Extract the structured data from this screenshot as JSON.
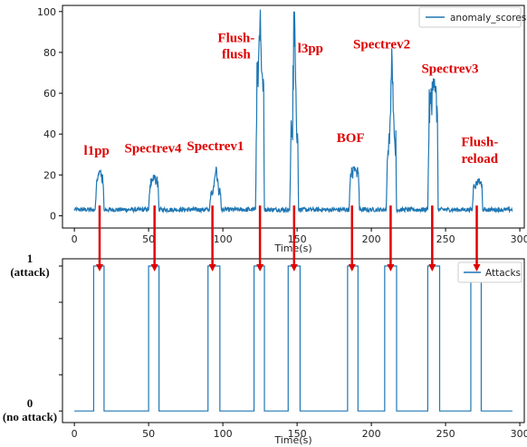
{
  "chart_data": [
    {
      "type": "line",
      "xlabel": "Time(s)",
      "ylabel": "",
      "xlim": [
        -8,
        303
      ],
      "ylim": [
        -6,
        103
      ],
      "xticks": [
        0,
        50,
        100,
        150,
        200,
        250,
        300
      ],
      "yticks": [
        0,
        20,
        40,
        60,
        80,
        100
      ],
      "grid": false,
      "legend": "top-right",
      "series": [
        {
          "name": "anomaly_scores",
          "color": "#1f77b4",
          "baseline": 3,
          "segments": [
            {
              "start": 14,
              "end": 20,
              "level": 17,
              "peak": 22
            },
            {
              "start": 50,
              "end": 57,
              "level": 16,
              "peak": 20
            },
            {
              "start": 91,
              "end": 99,
              "level": 12,
              "peak": 24
            },
            {
              "start": 122,
              "end": 128,
              "level": 65,
              "peak": 101
            },
            {
              "start": 145,
              "end": 151,
              "level": 40,
              "peak": 100
            },
            {
              "start": 185,
              "end": 192,
              "level": 21,
              "peak": 24
            },
            {
              "start": 210,
              "end": 217,
              "level": 35,
              "peak": 82
            },
            {
              "start": 238,
              "end": 245,
              "level": 55,
              "peak": 67
            },
            {
              "start": 268,
              "end": 275,
              "level": 16,
              "peak": 18
            }
          ]
        }
      ],
      "annotations": [
        {
          "text": "l1pp",
          "x": 15,
          "y": 30
        },
        {
          "text": "Spectrev4",
          "x": 53,
          "y": 31
        },
        {
          "text": "Spectrev1",
          "x": 95,
          "y": 32
        },
        {
          "text": "Flush-",
          "x": 109,
          "y": 85
        },
        {
          "text": "flush",
          "x": 109,
          "y": 77
        },
        {
          "text": "l3pp",
          "x": 159,
          "y": 80
        },
        {
          "text": "BOF",
          "x": 186,
          "y": 36
        },
        {
          "text": "Spectrev2",
          "x": 207,
          "y": 82
        },
        {
          "text": "Spectrev3",
          "x": 253,
          "y": 70
        },
        {
          "text": "Flush-",
          "x": 273,
          "y": 34
        },
        {
          "text": "reload",
          "x": 273,
          "y": 26
        }
      ]
    },
    {
      "type": "line",
      "xlabel": "Time(s)",
      "ylabel": "",
      "xlim": [
        -8,
        303
      ],
      "ylim": [
        -0.08,
        1.05
      ],
      "xticks": [
        0,
        50,
        100,
        150,
        200,
        250,
        300
      ],
      "yticks": [
        0,
        1
      ],
      "ytick_labels": [
        {
          "value": 1,
          "top": "1",
          "bottom": "(attack)"
        },
        {
          "value": 0,
          "top": "0",
          "bottom": "(no attack)"
        }
      ],
      "grid": false,
      "legend": "top-right",
      "series": [
        {
          "name": "Attacks",
          "color": "#1f77b4",
          "pulses": [
            [
              13,
              20
            ],
            [
              50,
              57
            ],
            [
              90,
              98
            ],
            [
              121,
              128
            ],
            [
              144,
              152
            ],
            [
              184,
              191
            ],
            [
              209,
              217
            ],
            [
              238,
              246
            ],
            [
              267,
              274
            ]
          ],
          "x_end": 295
        }
      ]
    }
  ],
  "arrows": {
    "color": "#e00000",
    "x": [
      17,
      54,
      93,
      125,
      148,
      187,
      213,
      241,
      271
    ]
  }
}
